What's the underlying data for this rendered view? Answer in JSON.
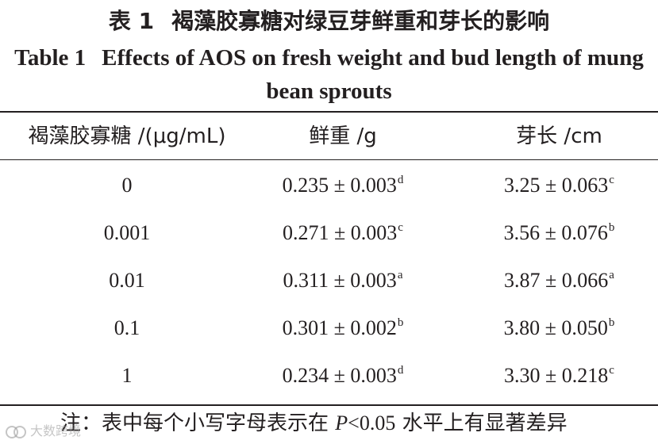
{
  "title_cn": {
    "label": "表 1",
    "text": "褐藻胶寡糖对绿豆芽鲜重和芽长的影响"
  },
  "title_en": {
    "label": "Table 1",
    "text": "Effects of AOS on fresh weight and bud length of mung bean sprouts"
  },
  "table": {
    "headers": [
      "褐藻胶寡糖 /(μg/mL)",
      "鲜重 /g",
      "芽长 /cm"
    ],
    "rows": [
      {
        "conc": "0",
        "fresh_weight": "0.235 ± 0.003",
        "fw_sig": "d",
        "bud_length": "3.25 ± 0.063",
        "bl_sig": "c"
      },
      {
        "conc": "0.001",
        "fresh_weight": "0.271 ± 0.003",
        "fw_sig": "c",
        "bud_length": "3.56 ± 0.076",
        "bl_sig": "b"
      },
      {
        "conc": "0.01",
        "fresh_weight": "0.311 ± 0.003",
        "fw_sig": "a",
        "bud_length": "3.87 ± 0.066",
        "bl_sig": "a"
      },
      {
        "conc": "0.1",
        "fresh_weight": "0.301 ± 0.002",
        "fw_sig": "b",
        "bud_length": "3.80 ± 0.050",
        "bl_sig": "b"
      },
      {
        "conc": "1",
        "fresh_weight": "0.234 ± 0.003",
        "fw_sig": "d",
        "bud_length": "3.30 ± 0.218",
        "bl_sig": "c"
      }
    ]
  },
  "note": {
    "prefix": "注：表中每个小写字母表示在 ",
    "p_symbol": "P",
    "threshold": "<0.05",
    "suffix": " 水平上有显著差异"
  },
  "watermark": {
    "text": "大数跨境"
  }
}
